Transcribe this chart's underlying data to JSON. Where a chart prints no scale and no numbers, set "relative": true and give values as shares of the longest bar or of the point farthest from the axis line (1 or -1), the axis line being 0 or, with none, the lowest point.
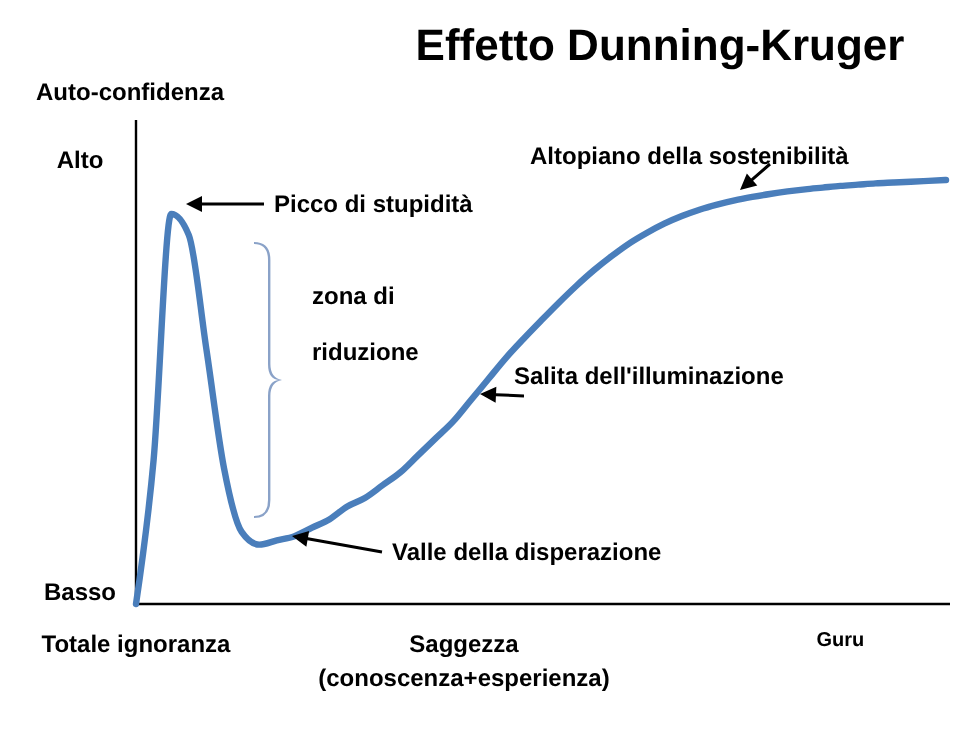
{
  "chart_data": {
    "type": "line",
    "relative": true,
    "title": "Effetto Dunning-Kruger",
    "xlabel": "Saggezza\n(conoscenza+esperienza)",
    "ylabel": "Auto-confidenza",
    "categories": [
      "Totale ignoranza",
      null,
      null,
      null,
      null,
      null,
      null,
      null,
      null,
      null,
      null,
      null,
      null,
      null,
      null,
      null,
      null,
      null,
      null,
      null,
      null,
      null,
      null,
      null,
      null,
      null,
      null,
      null,
      null,
      null,
      null,
      null,
      null,
      null,
      null,
      null,
      null,
      null,
      null,
      null,
      "Guru",
      null,
      null,
      null,
      null,
      null,
      null
    ],
    "series": [
      {
        "color": "#4a7ebb",
        "values": [
          0,
          0.34,
          0.92,
          0.87,
          0.6,
          0.32,
          0.17,
          0.14,
          0.15,
          0.16,
          0.18,
          0.2,
          0.23,
          0.25,
          0.28,
          0.31,
          0.35,
          0.39,
          0.43,
          0.48,
          0.53,
          0.58,
          0.625,
          0.668,
          0.71,
          0.75,
          0.787,
          0.82,
          0.85,
          0.875,
          0.897,
          0.915,
          0.93,
          0.942,
          0.952,
          0.96,
          0.967,
          0.973,
          0.978,
          0.982,
          0.986,
          0.989,
          0.992,
          0.994,
          0.996,
          0.998,
          1
        ]
      }
    ],
    "annotations": [
      "Alto",
      "Basso",
      "Picco di stupidità",
      "Valle della disperazione",
      "Salita dell'illuminazione",
      "Altopiano della sostenibilità",
      "zona di riduzione"
    ],
    "marker": "none",
    "line_style": "solid"
  }
}
